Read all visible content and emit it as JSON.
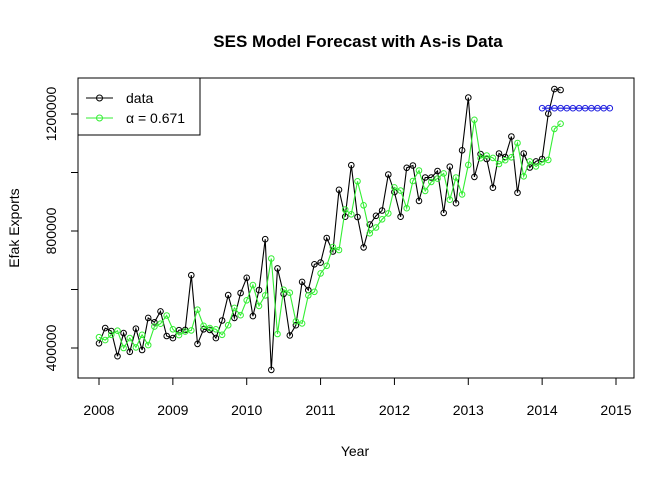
{
  "chart_data": {
    "type": "line",
    "title": "SES Model Forecast with As-is Data",
    "xlabel": "Year",
    "ylabel": "Efak Exports",
    "xlim": [
      2008,
      2015
    ],
    "ylim": [
      330000,
      1300000
    ],
    "x_ticks": [
      "2008",
      "2009",
      "2010",
      "2011",
      "2012",
      "2013",
      "2014",
      "2015"
    ],
    "y_ticks": [
      "400000",
      "800000",
      "1200000"
    ],
    "legend": {
      "placement": "top-left",
      "entries": [
        {
          "label": "data",
          "color": "#000000"
        },
        {
          "label": "α = 0.671",
          "color": "#33ee33"
        }
      ]
    },
    "colors": {
      "data": "#000000",
      "fitted": "#33ee33",
      "forecast": "#1f1fe0"
    },
    "series": [
      {
        "name": "data",
        "x_start": 2008.0,
        "step": 0.08333,
        "values": [
          416000,
          468000,
          458000,
          372000,
          451000,
          387000,
          466000,
          393000,
          503000,
          488000,
          525000,
          441000,
          434000,
          461000,
          462000,
          649000,
          414000,
          464000,
          462000,
          434000,
          494000,
          581000,
          503000,
          588000,
          640000,
          509000,
          598000,
          772000,
          325000,
          672000,
          585000,
          443000,
          478000,
          626000,
          598000,
          686000,
          692000,
          776000,
          730000,
          941000,
          849000,
          1025000,
          848000,
          744000,
          822000,
          852000,
          870000,
          993000,
          933000,
          849000,
          1016000,
          1024000,
          903000,
          983000,
          983000,
          1005000,
          862000,
          1020000,
          895000,
          1076000,
          1256000,
          985000,
          1063000,
          1046000,
          948000,
          1065000,
          1053000,
          1123000,
          931000,
          1065000,
          1017000,
          1038000,
          1046000,
          1201000,
          1285000,
          1282000
        ]
      },
      {
        "name": "α = 0.671",
        "x_start": 2008.0,
        "step": 0.08333,
        "values": [
          437000,
          427000,
          445000,
          459000,
          400000,
          434000,
          402000,
          445000,
          410000,
          473000,
          483000,
          511000,
          464000,
          444000,
          456000,
          460000,
          531000,
          476000,
          468000,
          464000,
          445000,
          478000,
          537000,
          512000,
          563000,
          615000,
          544000,
          580000,
          706000,
          448000,
          599000,
          589000,
          491000,
          484000,
          580000,
          592000,
          655000,
          681000,
          745000,
          735000,
          873000,
          857000,
          970000,
          888000,
          792000,
          812000,
          840000,
          860000,
          949000,
          938000,
          878000,
          971000,
          1007000,
          937000,
          968000,
          979000,
          997000,
          907000,
          983000,
          925000,
          1026000,
          1180000,
          1049000,
          1058000,
          1050000,
          1029000,
          1042000,
          1052000,
          1101000,
          987000,
          1038000,
          1021000,
          1035000,
          1043000,
          1149000,
          1167000
        ]
      },
      {
        "name": "forecast",
        "x_start": 2014.0,
        "step": 0.08333,
        "values": [
          1220000,
          1220000,
          1220000,
          1220000,
          1220000,
          1220000,
          1220000,
          1220000,
          1220000,
          1220000,
          1220000,
          1220000
        ]
      }
    ]
  }
}
